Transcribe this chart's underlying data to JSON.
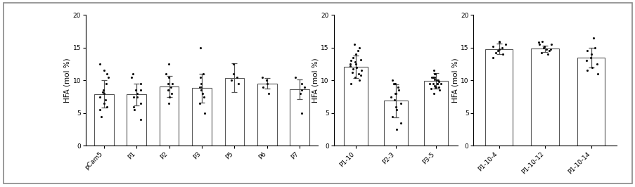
{
  "panel1": {
    "categories": [
      "pCam5",
      "P1",
      "P2",
      "P3",
      "P5",
      "P6",
      "P7"
    ],
    "means": [
      7.9,
      7.85,
      9.1,
      8.85,
      10.4,
      9.55,
      8.65
    ],
    "errors": [
      2.1,
      1.7,
      1.6,
      2.2,
      2.2,
      0.85,
      1.55
    ],
    "scatter": [
      [
        7.5,
        6.0,
        8.5,
        9.5,
        10.5,
        11.5,
        8.0,
        5.5,
        4.5,
        6.5,
        7.0,
        11.0,
        8.2,
        12.5
      ],
      [
        5.5,
        6.5,
        7.5,
        8.5,
        9.5,
        10.5,
        8.0,
        4.0,
        6.0,
        7.5,
        8.5,
        11.0
      ],
      [
        7.5,
        8.0,
        9.0,
        10.5,
        11.0,
        12.5,
        9.5,
        6.5,
        8.5,
        9.5
      ],
      [
        5.0,
        6.5,
        8.0,
        9.0,
        9.5,
        10.5,
        11.0,
        15.0,
        8.5,
        7.5,
        9.0
      ],
      [
        9.5,
        10.0,
        10.5,
        11.0,
        12.5
      ],
      [
        8.0,
        9.5,
        10.0,
        10.5,
        9.0
      ],
      [
        5.0,
        8.0,
        8.5,
        9.0,
        9.5,
        10.5
      ]
    ],
    "ylabel": "HFA (mol %)",
    "ylim": [
      0,
      20
    ],
    "yticks": [
      0,
      5,
      10,
      15,
      20
    ]
  },
  "panel2": {
    "categories": [
      "P1-10",
      "P2-3",
      "P3-5"
    ],
    "means": [
      12.1,
      6.9,
      9.95
    ],
    "errors": [
      1.7,
      2.5,
      1.2
    ],
    "scatter": [
      [
        9.5,
        10.0,
        10.5,
        11.0,
        11.5,
        12.0,
        12.5,
        13.0,
        13.5,
        14.0,
        14.5,
        15.0,
        15.5,
        12.2,
        11.8,
        10.8,
        11.2,
        12.8,
        13.2,
        12.5
      ],
      [
        2.5,
        3.5,
        4.5,
        5.5,
        6.5,
        7.5,
        8.0,
        8.5,
        9.0,
        9.5,
        10.0,
        6.0,
        7.0,
        8.0,
        9.5
      ],
      [
        8.5,
        9.0,
        9.5,
        10.0,
        10.5,
        11.0,
        11.5,
        9.5,
        8.0,
        9.0,
        10.0,
        11.0,
        9.5,
        10.5,
        9.8,
        9.2,
        10.2,
        9.5,
        9.0,
        10.5,
        9.5,
        8.8
      ]
    ],
    "ylabel": "HFA (mol %)",
    "ylim": [
      0,
      20
    ],
    "yticks": [
      0,
      5,
      10,
      15,
      20
    ]
  },
  "panel3": {
    "categories": [
      "P1-10-4",
      "P1-10-12",
      "P1-10-14"
    ],
    "means": [
      14.8,
      14.85,
      13.5
    ],
    "errors": [
      0.8,
      0.5,
      1.5
    ],
    "scatter": [
      [
        13.5,
        14.0,
        14.5,
        15.0,
        15.5,
        16.0,
        14.8,
        15.2,
        14.2,
        15.8
      ],
      [
        14.0,
        14.5,
        15.0,
        15.5,
        16.0,
        14.8,
        14.2,
        15.2,
        15.5,
        15.8,
        14.8
      ],
      [
        11.0,
        11.5,
        12.0,
        12.5,
        13.0,
        14.0,
        15.0,
        16.5,
        13.5,
        14.5
      ]
    ],
    "ylabel": "HFA (mol %)",
    "ylim": [
      0,
      20
    ],
    "yticks": [
      0,
      5,
      10,
      15,
      20
    ]
  },
  "bar_color": "#ffffff",
  "bar_edgecolor": "#555555",
  "scatter_color": "#111111",
  "error_color": "#555555",
  "background_color": "#ffffff",
  "figure_background": "#ffffff",
  "border_color": "#888888"
}
